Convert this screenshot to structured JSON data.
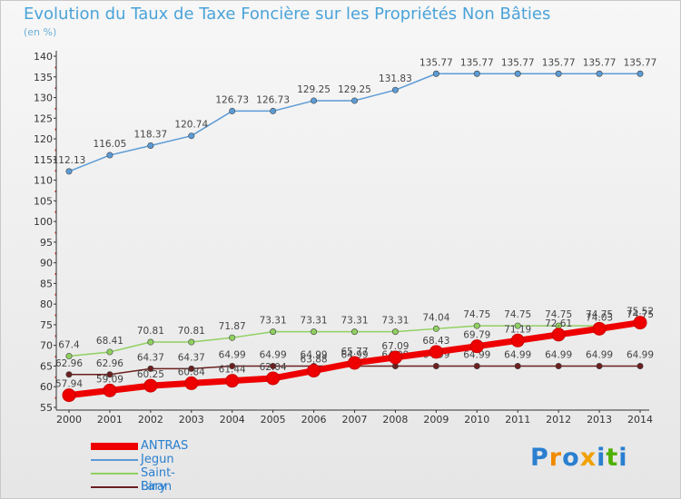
{
  "title": "Evolution du Taux de Taxe Foncière sur les Propriétés Non Bâties",
  "subtitle": "(en %)",
  "logo": {
    "letters": [
      "P",
      "r",
      "o",
      "x",
      "i",
      "t",
      "i"
    ],
    "colors": [
      "#2a7fd0",
      "#f08a00",
      "#2a7fd0",
      "#f0a000",
      "#2a7fd0",
      "#50b000",
      "#2a7fd0"
    ]
  },
  "chart_data": {
    "type": "line",
    "x": [
      "2000",
      "2001",
      "2002",
      "2003",
      "2004",
      "2005",
      "2006",
      "2007",
      "2008",
      "2009",
      "2010",
      "2011",
      "2012",
      "2013",
      "2014"
    ],
    "ylim": [
      55,
      140
    ],
    "yticks": [
      55,
      60,
      65,
      70,
      75,
      80,
      85,
      90,
      95,
      100,
      105,
      110,
      115,
      120,
      125,
      130,
      135,
      140
    ],
    "grid": false,
    "legend_position": "bottom-left",
    "series": [
      {
        "name": "Jegun",
        "color": "#5b9bd5",
        "values": [
          112.13,
          116.05,
          118.37,
          120.74,
          126.73,
          126.73,
          129.25,
          129.25,
          131.83,
          135.77,
          135.77,
          135.77,
          135.77,
          135.77,
          135.77
        ],
        "labels": [
          "112.13",
          "116.05",
          "118.37",
          "120.74",
          "126.73",
          "126.73",
          "129.25",
          "129.25",
          "131.83",
          "135.77",
          "135.77",
          "135.77",
          "135.77",
          "135.77",
          "135.77"
        ]
      },
      {
        "name": "Saint-Lary",
        "color": "#90d060",
        "values": [
          67.4,
          68.41,
          70.81,
          70.81,
          71.87,
          73.31,
          73.31,
          73.31,
          73.31,
          74.04,
          74.75,
          74.75,
          74.75,
          74.75,
          74.75
        ],
        "labels": [
          "67.4",
          "68.41",
          "70.81",
          "70.81",
          "71.87",
          "73.31",
          "73.31",
          "73.31",
          "73.31",
          "74.04",
          "74.75",
          "74.75",
          "74.75",
          "74.75",
          "74.75"
        ]
      },
      {
        "name": "Biran",
        "color": "#6b1f1f",
        "values": [
          62.96,
          62.96,
          64.37,
          64.37,
          64.99,
          64.99,
          64.99,
          64.99,
          64.99,
          64.99,
          64.99,
          64.99,
          64.99,
          64.99,
          64.99
        ],
        "labels": [
          "62.96",
          "62.96",
          "64.37",
          "64.37",
          "64.99",
          "64.99",
          "64.99",
          "64.99",
          "64.99",
          "64.99",
          "64.99",
          "64.99",
          "64.99",
          "64.99",
          "64.99"
        ]
      },
      {
        "name": "ANTRAS",
        "color": "#ee0000",
        "values": [
          57.94,
          59.09,
          60.25,
          60.84,
          61.44,
          62.04,
          63.88,
          65.77,
          67.09,
          68.43,
          69.79,
          71.19,
          72.61,
          74.03,
          75.52
        ],
        "labels": [
          "57.94",
          "59.09",
          "60.25",
          "60.84",
          "61.44",
          "62.04",
          "63.88",
          "65.77",
          "67.09",
          "68.43",
          "69.79",
          "71.19",
          "72.61",
          "74.03",
          "75.52"
        ]
      }
    ],
    "legend": [
      {
        "name": "ANTRAS",
        "color": "#ee0000"
      },
      {
        "name": "Jegun",
        "color": "#5b9bd5"
      },
      {
        "name": "Saint-Lary",
        "color": "#90d060"
      },
      {
        "name": "Biran",
        "color": "#6b1f1f"
      }
    ]
  }
}
